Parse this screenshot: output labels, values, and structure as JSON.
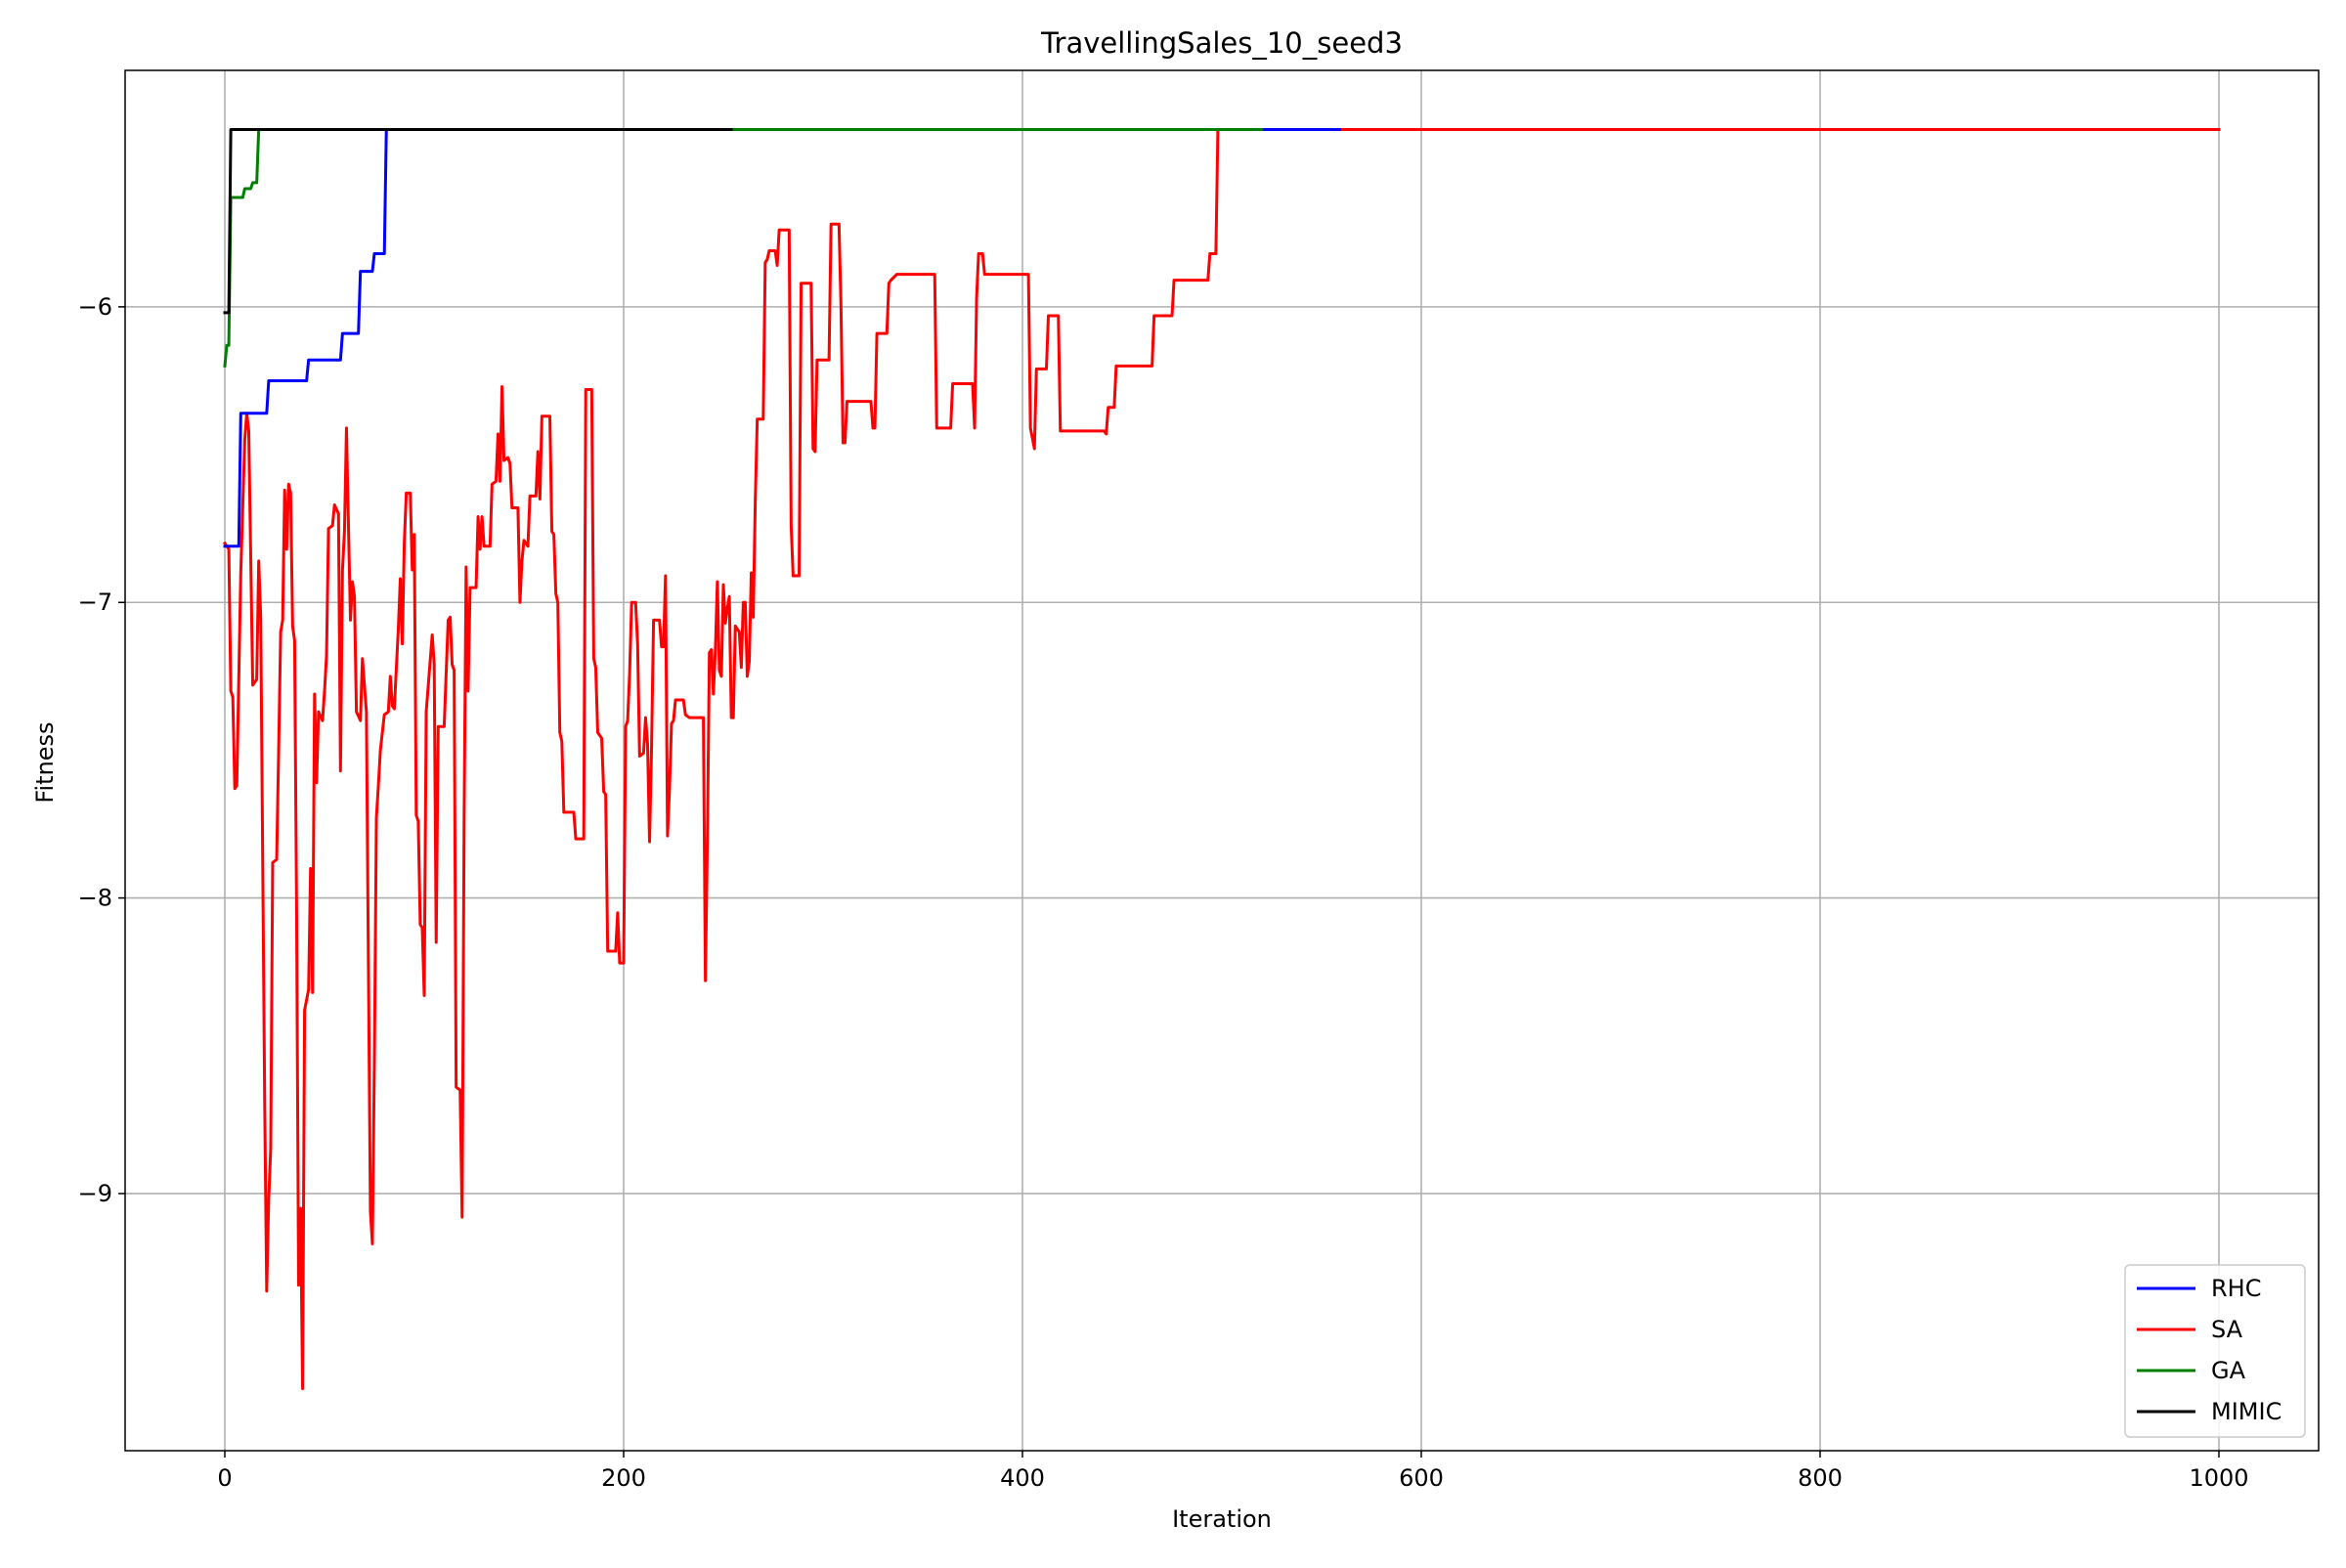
{
  "chart_data": {
    "type": "line",
    "title": "TravellingSales_10_seed3",
    "xlabel": "Iteration",
    "ylabel": "Fitness",
    "xlim": [
      -50,
      1050
    ],
    "ylim": [
      -9.87,
      -5.2
    ],
    "xticks": [
      0,
      200,
      400,
      600,
      800,
      1000
    ],
    "xtick_labels": [
      "0",
      "200",
      "400",
      "600",
      "800",
      "1000"
    ],
    "yticks": [
      -9,
      -8,
      -7,
      -6
    ],
    "ytick_labels": [
      "−9",
      "−8",
      "−7",
      "−6"
    ],
    "grid": true,
    "legend_position": "lower-right",
    "series": [
      {
        "name": "RHC",
        "color": "#0000ff",
        "points": [
          [
            0,
            -6.81
          ],
          [
            1,
            -6.81
          ],
          [
            7,
            -6.81
          ],
          [
            8,
            -6.36
          ],
          [
            21,
            -6.36
          ],
          [
            22,
            -6.25
          ],
          [
            41,
            -6.25
          ],
          [
            42,
            -6.18
          ],
          [
            58,
            -6.18
          ],
          [
            59,
            -6.09
          ],
          [
            67,
            -6.09
          ],
          [
            68,
            -5.88
          ],
          [
            74,
            -5.88
          ],
          [
            75,
            -5.82
          ],
          [
            80,
            -5.82
          ],
          [
            81,
            -5.4
          ],
          [
            520,
            -5.4
          ],
          [
            559,
            -5.4
          ]
        ]
      },
      {
        "name": "SA",
        "color": "#ff0000",
        "points": [
          [
            0,
            -6.8
          ],
          [
            2,
            -6.82
          ],
          [
            3,
            -7.3
          ],
          [
            4,
            -7.32
          ],
          [
            5,
            -7.63
          ],
          [
            6,
            -7.62
          ],
          [
            8,
            -6.9
          ],
          [
            10,
            -6.45
          ],
          [
            11,
            -6.36
          ],
          [
            12,
            -6.42
          ],
          [
            13,
            -6.85
          ],
          [
            14,
            -7.28
          ],
          [
            16,
            -7.26
          ],
          [
            17,
            -6.86
          ],
          [
            18,
            -7.05
          ],
          [
            20,
            -8.7
          ],
          [
            21,
            -9.33
          ],
          [
            22,
            -9.02
          ],
          [
            23,
            -8.85
          ],
          [
            24,
            -7.88
          ],
          [
            26,
            -7.87
          ],
          [
            27,
            -7.5
          ],
          [
            28,
            -7.1
          ],
          [
            29,
            -7.06
          ],
          [
            30,
            -6.62
          ],
          [
            31,
            -6.82
          ],
          [
            32,
            -6.6
          ],
          [
            33,
            -6.63
          ],
          [
            34,
            -7.08
          ],
          [
            35,
            -7.13
          ],
          [
            36,
            -8.05
          ],
          [
            37,
            -9.31
          ],
          [
            38,
            -9.05
          ],
          [
            39,
            -9.66
          ],
          [
            40,
            -8.38
          ],
          [
            42,
            -8.31
          ],
          [
            43,
            -7.9
          ],
          [
            44,
            -8.32
          ],
          [
            45,
            -7.31
          ],
          [
            46,
            -7.61
          ],
          [
            47,
            -7.37
          ],
          [
            49,
            -7.4
          ],
          [
            50,
            -7.3
          ],
          [
            51,
            -7.18
          ],
          [
            52,
            -6.75
          ],
          [
            54,
            -6.74
          ],
          [
            55,
            -6.67
          ],
          [
            57,
            -6.7
          ],
          [
            58,
            -7.57
          ],
          [
            59,
            -6.89
          ],
          [
            60,
            -6.76
          ],
          [
            61,
            -6.41
          ],
          [
            62,
            -6.74
          ],
          [
            63,
            -7.06
          ],
          [
            64,
            -6.93
          ],
          [
            65,
            -6.98
          ],
          [
            66,
            -7.37
          ],
          [
            68,
            -7.4
          ],
          [
            69,
            -7.19
          ],
          [
            71,
            -7.37
          ],
          [
            72,
            -8.22
          ],
          [
            73,
            -9.06
          ],
          [
            74,
            -9.17
          ],
          [
            75,
            -8.55
          ],
          [
            76,
            -7.73
          ],
          [
            77,
            -7.62
          ],
          [
            78,
            -7.5
          ],
          [
            80,
            -7.38
          ],
          [
            82,
            -7.37
          ],
          [
            83,
            -7.25
          ],
          [
            84,
            -7.35
          ],
          [
            85,
            -7.36
          ],
          [
            87,
            -7.09
          ],
          [
            88,
            -6.92
          ],
          [
            89,
            -7.14
          ],
          [
            90,
            -6.8
          ],
          [
            91,
            -6.63
          ],
          [
            93,
            -6.63
          ],
          [
            94,
            -6.89
          ],
          [
            95,
            -6.77
          ],
          [
            96,
            -7.72
          ],
          [
            97,
            -7.74
          ],
          [
            98,
            -8.09
          ],
          [
            99,
            -8.1
          ],
          [
            100,
            -8.33
          ],
          [
            101,
            -7.37
          ],
          [
            104,
            -7.11
          ],
          [
            105,
            -7.21
          ],
          [
            106,
            -8.15
          ],
          [
            107,
            -7.42
          ],
          [
            110,
            -7.42
          ],
          [
            112,
            -7.06
          ],
          [
            113,
            -7.05
          ],
          [
            114,
            -7.21
          ],
          [
            115,
            -7.23
          ],
          [
            116,
            -8.64
          ],
          [
            118,
            -8.65
          ],
          [
            119,
            -9.08
          ],
          [
            120,
            -7.73
          ],
          [
            121,
            -6.88
          ],
          [
            122,
            -7.3
          ],
          [
            123,
            -6.95
          ],
          [
            126,
            -6.95
          ],
          [
            127,
            -6.71
          ],
          [
            128,
            -6.82
          ],
          [
            129,
            -6.71
          ],
          [
            130,
            -6.81
          ],
          [
            133,
            -6.81
          ],
          [
            134,
            -6.6
          ],
          [
            136,
            -6.59
          ],
          [
            137,
            -6.43
          ],
          [
            138,
            -6.59
          ],
          [
            139,
            -6.27
          ],
          [
            140,
            -6.52
          ],
          [
            142,
            -6.51
          ],
          [
            143,
            -6.53
          ],
          [
            144,
            -6.68
          ],
          [
            147,
            -6.68
          ],
          [
            148,
            -7.0
          ],
          [
            149,
            -6.86
          ],
          [
            150,
            -6.79
          ],
          [
            152,
            -6.81
          ],
          [
            153,
            -6.64
          ],
          [
            156,
            -6.64
          ],
          [
            157,
            -6.49
          ],
          [
            158,
            -6.65
          ],
          [
            159,
            -6.37
          ],
          [
            163,
            -6.37
          ],
          [
            164,
            -6.76
          ],
          [
            165,
            -6.77
          ],
          [
            166,
            -6.97
          ],
          [
            167,
            -7.0
          ],
          [
            168,
            -7.44
          ],
          [
            169,
            -7.47
          ],
          [
            170,
            -7.71
          ],
          [
            175,
            -7.71
          ],
          [
            176,
            -7.8
          ],
          [
            180,
            -7.8
          ],
          [
            181,
            -6.28
          ],
          [
            184,
            -6.28
          ],
          [
            185,
            -7.19
          ],
          [
            186,
            -7.22
          ],
          [
            187,
            -7.44
          ],
          [
            189,
            -7.46
          ],
          [
            190,
            -7.64
          ],
          [
            191,
            -7.65
          ],
          [
            192,
            -8.18
          ],
          [
            196,
            -8.18
          ],
          [
            197,
            -8.05
          ],
          [
            198,
            -8.22
          ],
          [
            200,
            -8.22
          ],
          [
            201,
            -7.42
          ],
          [
            202,
            -7.4
          ],
          [
            203,
            -7.24
          ],
          [
            204,
            -7.0
          ],
          [
            206,
            -7.0
          ],
          [
            207,
            -7.14
          ],
          [
            208,
            -7.52
          ],
          [
            210,
            -7.51
          ],
          [
            211,
            -7.39
          ],
          [
            212,
            -7.48
          ],
          [
            213,
            -7.81
          ],
          [
            214,
            -7.49
          ],
          [
            215,
            -7.06
          ],
          [
            218,
            -7.06
          ],
          [
            219,
            -7.15
          ],
          [
            220,
            -7.15
          ],
          [
            221,
            -6.91
          ],
          [
            222,
            -7.79
          ],
          [
            223,
            -7.63
          ],
          [
            224,
            -7.41
          ],
          [
            225,
            -7.4
          ],
          [
            226,
            -7.33
          ],
          [
            230,
            -7.33
          ],
          [
            231,
            -7.38
          ],
          [
            233,
            -7.39
          ],
          [
            240,
            -7.39
          ],
          [
            241,
            -8.28
          ],
          [
            242,
            -7.8
          ],
          [
            243,
            -7.17
          ],
          [
            244,
            -7.16
          ],
          [
            245,
            -7.31
          ],
          [
            246,
            -7.16
          ],
          [
            247,
            -6.93
          ],
          [
            248,
            -7.23
          ],
          [
            249,
            -7.25
          ],
          [
            250,
            -6.94
          ],
          [
            251,
            -7.07
          ],
          [
            252,
            -7.02
          ],
          [
            253,
            -6.98
          ],
          [
            254,
            -7.39
          ],
          [
            255,
            -7.39
          ],
          [
            256,
            -7.08
          ],
          [
            257,
            -7.09
          ],
          [
            258,
            -7.1
          ],
          [
            259,
            -7.22
          ],
          [
            260,
            -7.0
          ],
          [
            261,
            -7.0
          ],
          [
            262,
            -7.25
          ],
          [
            263,
            -7.2
          ],
          [
            264,
            -6.9
          ],
          [
            265,
            -7.05
          ],
          [
            266,
            -6.66
          ],
          [
            267,
            -6.38
          ],
          [
            270,
            -6.38
          ],
          [
            271,
            -5.85
          ],
          [
            272,
            -5.84
          ],
          [
            273,
            -5.81
          ],
          [
            276,
            -5.81
          ],
          [
            277,
            -5.86
          ],
          [
            278,
            -5.74
          ],
          [
            283,
            -5.74
          ],
          [
            284,
            -6.74
          ],
          [
            285,
            -6.91
          ],
          [
            288,
            -6.91
          ],
          [
            289,
            -5.92
          ],
          [
            294,
            -5.92
          ],
          [
            295,
            -6.48
          ],
          [
            296,
            -6.49
          ],
          [
            297,
            -6.18
          ],
          [
            303,
            -6.18
          ],
          [
            304,
            -5.72
          ],
          [
            308,
            -5.72
          ],
          [
            309,
            -6.0
          ],
          [
            310,
            -6.46
          ],
          [
            311,
            -6.46
          ],
          [
            312,
            -6.32
          ],
          [
            324,
            -6.32
          ],
          [
            325,
            -6.41
          ],
          [
            326,
            -6.41
          ],
          [
            327,
            -6.09
          ],
          [
            332,
            -6.09
          ],
          [
            333,
            -5.92
          ],
          [
            334,
            -5.91
          ],
          [
            337,
            -5.89
          ],
          [
            356,
            -5.89
          ],
          [
            357,
            -6.41
          ],
          [
            364,
            -6.41
          ],
          [
            365,
            -6.26
          ],
          [
            375,
            -6.26
          ],
          [
            376,
            -6.41
          ],
          [
            377,
            -5.97
          ],
          [
            378,
            -5.82
          ],
          [
            380,
            -5.82
          ],
          [
            381,
            -5.89
          ],
          [
            403,
            -5.89
          ],
          [
            404,
            -6.41
          ],
          [
            406,
            -6.48
          ],
          [
            407,
            -6.21
          ],
          [
            412,
            -6.21
          ],
          [
            413,
            -6.03
          ],
          [
            418,
            -6.03
          ],
          [
            419,
            -6.42
          ],
          [
            441,
            -6.42
          ],
          [
            442,
            -6.43
          ],
          [
            443,
            -6.34
          ],
          [
            446,
            -6.34
          ],
          [
            447,
            -6.2
          ],
          [
            465,
            -6.2
          ],
          [
            466,
            -6.03
          ],
          [
            474,
            -6.03
          ],
          [
            475,
            -6.03
          ],
          [
            476,
            -5.91
          ],
          [
            483,
            -5.91
          ],
          [
            485,
            -5.91
          ],
          [
            493,
            -5.91
          ],
          [
            494,
            -5.82
          ],
          [
            497,
            -5.82
          ],
          [
            498,
            -5.4
          ],
          [
            1000,
            -5.4
          ]
        ]
      },
      {
        "name": "GA",
        "color": "#008000",
        "points": [
          [
            0,
            -6.2
          ],
          [
            1,
            -6.13
          ],
          [
            2,
            -6.13
          ],
          [
            3,
            -5.63
          ],
          [
            9,
            -5.63
          ],
          [
            10,
            -5.6
          ],
          [
            13,
            -5.6
          ],
          [
            14,
            -5.58
          ],
          [
            16,
            -5.58
          ],
          [
            17,
            -5.4
          ],
          [
            520,
            -5.4
          ]
        ]
      },
      {
        "name": "MIMIC",
        "color": "#000000",
        "points": [
          [
            0,
            -6.02
          ],
          [
            2,
            -6.02
          ],
          [
            3,
            -5.4
          ],
          [
            254,
            -5.4
          ]
        ]
      }
    ]
  }
}
